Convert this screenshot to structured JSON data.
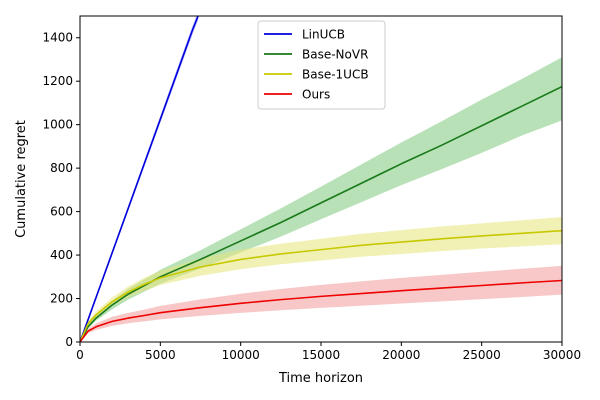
{
  "chart_data": {
    "type": "line",
    "title": "",
    "xlabel": "Time horizon",
    "ylabel": "Cumulative regret",
    "xlim": [
      0,
      30000
    ],
    "ylim": [
      0,
      1500
    ],
    "xticks": [
      0,
      5000,
      10000,
      15000,
      20000,
      25000,
      30000
    ],
    "yticks": [
      0,
      200,
      400,
      600,
      800,
      1000,
      1200,
      1400
    ],
    "grid": false,
    "legend_position": "upper-center",
    "series": [
      {
        "name": "LinUCB",
        "color": "#0000dd",
        "band_color": "#8888ff",
        "x": [
          0,
          1000,
          2000,
          3000,
          4000,
          5000,
          6000,
          7000,
          7350
        ],
        "y": [
          0,
          205,
          410,
          615,
          820,
          1025,
          1230,
          1435,
          1500
        ],
        "lower": [
          0,
          198,
          400,
          603,
          806,
          1009,
          1212,
          1415,
          1480
        ],
        "upper": [
          0,
          212,
          420,
          627,
          834,
          1041,
          1248,
          1455,
          1520
        ]
      },
      {
        "name": "Base-NoVR",
        "color": "#1a7a1a",
        "band_color": "#7ec87e",
        "x": [
          0,
          500,
          1000,
          2000,
          3000,
          4000,
          5000,
          7500,
          10000,
          12500,
          15000,
          17500,
          20000,
          22500,
          25000,
          27500,
          30000
        ],
        "y": [
          0,
          70,
          110,
          170,
          220,
          260,
          300,
          380,
          465,
          550,
          640,
          730,
          820,
          905,
          995,
          1085,
          1175
        ],
        "lower": [
          0,
          62,
          98,
          150,
          195,
          232,
          268,
          338,
          412,
          485,
          565,
          643,
          722,
          795,
          870,
          950,
          1020
        ],
        "upper": [
          0,
          78,
          122,
          190,
          245,
          288,
          332,
          422,
          518,
          615,
          715,
          817,
          918,
          1015,
          1115,
          1210,
          1310
        ]
      },
      {
        "name": "Base-1UCB",
        "color": "#c8c800",
        "band_color": "#e6e67a",
        "x": [
          0,
          500,
          1000,
          2000,
          3000,
          4000,
          5000,
          7500,
          10000,
          12500,
          15000,
          17500,
          20000,
          22500,
          25000,
          27500,
          30000
        ],
        "y": [
          0,
          85,
          125,
          185,
          230,
          265,
          295,
          345,
          380,
          405,
          425,
          445,
          460,
          475,
          488,
          500,
          512
        ],
        "lower": [
          0,
          75,
          110,
          165,
          205,
          235,
          262,
          305,
          335,
          358,
          375,
          392,
          405,
          418,
          430,
          440,
          450
        ],
        "upper": [
          0,
          95,
          140,
          205,
          255,
          295,
          328,
          385,
          425,
          452,
          475,
          498,
          515,
          532,
          546,
          560,
          575
        ]
      },
      {
        "name": "Ours",
        "color": "#ee0000",
        "band_color": "#f39a9a",
        "x": [
          0,
          500,
          1000,
          2000,
          3000,
          4000,
          5000,
          7500,
          10000,
          12500,
          15000,
          17500,
          20000,
          22500,
          25000,
          27500,
          30000
        ],
        "y": [
          0,
          50,
          70,
          95,
          110,
          122,
          135,
          158,
          178,
          195,
          210,
          223,
          236,
          248,
          260,
          272,
          283
        ],
        "lower": [
          0,
          40,
          55,
          74,
          86,
          95,
          104,
          120,
          134,
          146,
          157,
          167,
          177,
          187,
          197,
          207,
          218
        ],
        "upper": [
          0,
          60,
          85,
          116,
          134,
          149,
          166,
          196,
          222,
          244,
          263,
          279,
          295,
          309,
          323,
          337,
          350
        ]
      }
    ]
  }
}
